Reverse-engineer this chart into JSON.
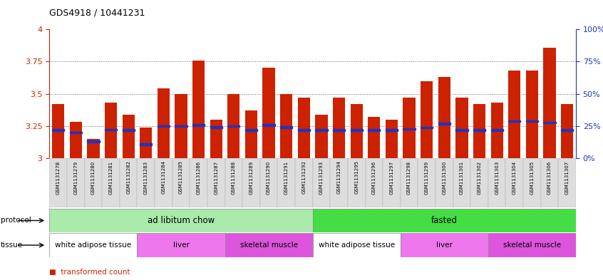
{
  "title": "GDS4918 / 10441231",
  "samples": [
    "GSM1131278",
    "GSM1131279",
    "GSM1131280",
    "GSM1131281",
    "GSM1131282",
    "GSM1131283",
    "GSM1131284",
    "GSM1131285",
    "GSM1131286",
    "GSM1131287",
    "GSM1131288",
    "GSM1131289",
    "GSM1131290",
    "GSM1131291",
    "GSM1131292",
    "GSM1131293",
    "GSM1131294",
    "GSM1131295",
    "GSM1131296",
    "GSM1131297",
    "GSM1131298",
    "GSM1131299",
    "GSM1131300",
    "GSM1131301",
    "GSM1131302",
    "GSM1131303",
    "GSM1131304",
    "GSM1131305",
    "GSM1131306",
    "GSM1131307"
  ],
  "bar_heights": [
    3.42,
    3.28,
    3.15,
    3.43,
    3.34,
    3.24,
    3.54,
    3.5,
    3.76,
    3.3,
    3.5,
    3.37,
    3.7,
    3.5,
    3.47,
    3.34,
    3.47,
    3.42,
    3.32,
    3.3,
    3.47,
    3.6,
    3.63,
    3.47,
    3.42,
    3.43,
    3.68,
    3.68,
    3.86,
    3.42
  ],
  "blue_marker_pos": [
    3.218,
    3.198,
    3.13,
    3.22,
    3.218,
    3.108,
    3.248,
    3.248,
    3.258,
    3.24,
    3.248,
    3.218,
    3.258,
    3.24,
    3.218,
    3.218,
    3.218,
    3.218,
    3.218,
    3.218,
    3.228,
    3.238,
    3.268,
    3.218,
    3.218,
    3.218,
    3.288,
    3.288,
    3.278,
    3.218
  ],
  "ylim_left": [
    3.0,
    4.0
  ],
  "yticks_left": [
    3.0,
    3.25,
    3.5,
    3.75,
    4.0
  ],
  "ytick_labels_left": [
    "3",
    "3.25",
    "3.5",
    "3.75",
    "4"
  ],
  "yticks_right_pct": [
    0,
    25,
    50,
    75,
    100
  ],
  "ytick_labels_right": [
    "0%",
    "25%",
    "50%",
    "75%",
    "100%"
  ],
  "bar_color": "#cc2200",
  "blue_color": "#2233bb",
  "dotted_color": "#666666",
  "protocol_groups": [
    {
      "label": "ad libitum chow",
      "start": 0,
      "end": 15,
      "color": "#aaeaaa"
    },
    {
      "label": "fasted",
      "start": 15,
      "end": 30,
      "color": "#44dd44"
    }
  ],
  "tissue_groups": [
    {
      "label": "white adipose tissue",
      "start": 0,
      "end": 5,
      "color": "#ffffff"
    },
    {
      "label": "liver",
      "start": 5,
      "end": 10,
      "color": "#ee77ee"
    },
    {
      "label": "skeletal muscle",
      "start": 10,
      "end": 15,
      "color": "#dd55dd"
    },
    {
      "label": "white adipose tissue",
      "start": 15,
      "end": 20,
      "color": "#ffffff"
    },
    {
      "label": "liver",
      "start": 20,
      "end": 25,
      "color": "#ee77ee"
    },
    {
      "label": "skeletal muscle",
      "start": 25,
      "end": 30,
      "color": "#dd55dd"
    }
  ],
  "left_axis_color": "#cc2200",
  "right_axis_color": "#2233bb",
  "xtick_bg_color": "#dddddd",
  "bg_color": "#ffffff"
}
